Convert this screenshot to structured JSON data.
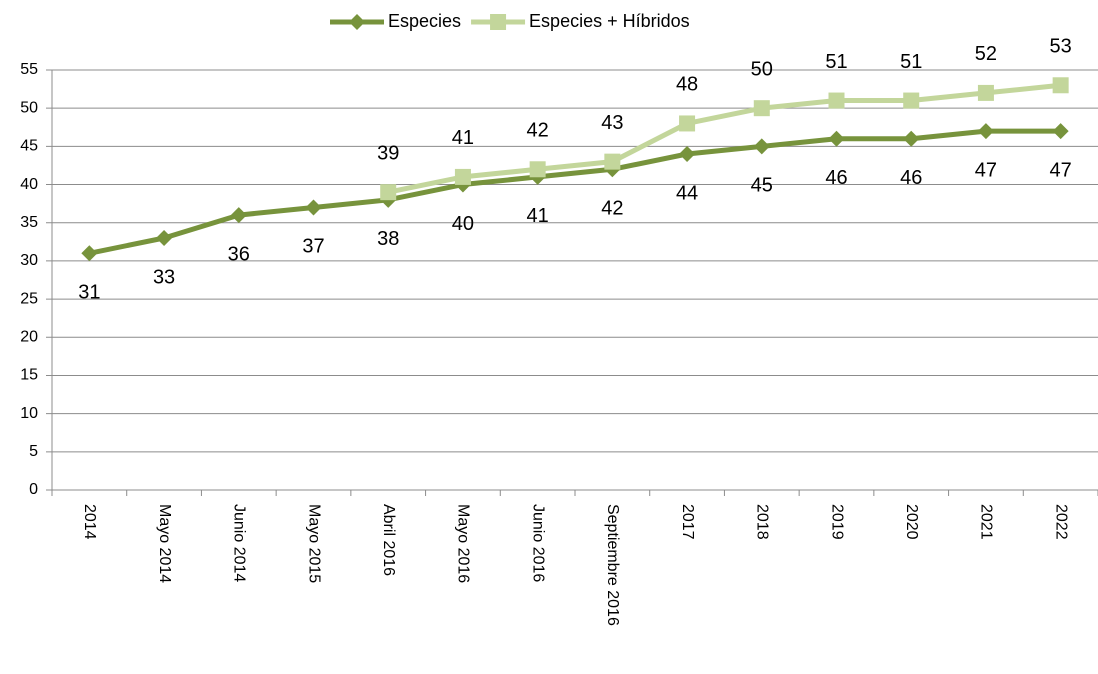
{
  "chart_data": {
    "type": "line",
    "categories": [
      "2014",
      "Mayo 2014",
      "Junio 2014",
      "Mayo 2015",
      "Abril 2016",
      "Mayo 2016",
      "Junio 2016",
      "Septiembre 2016",
      "2017",
      "2018",
      "2019",
      "2020",
      "2021",
      "2022"
    ],
    "series": [
      {
        "name": "Especies",
        "color": "#77933c",
        "marker": "diamond",
        "values": [
          31,
          33,
          36,
          37,
          38,
          40,
          41,
          42,
          44,
          45,
          46,
          46,
          47,
          47
        ]
      },
      {
        "name": "Especies + Híbridos",
        "color": "#c3d69b",
        "marker": "square",
        "values": [
          null,
          null,
          null,
          null,
          39,
          41,
          42,
          43,
          48,
          50,
          51,
          51,
          52,
          53
        ]
      }
    ],
    "ylim": [
      0,
      55
    ],
    "yticks": [
      0,
      5,
      10,
      15,
      20,
      25,
      30,
      35,
      40,
      45,
      50,
      55
    ],
    "grid": true,
    "legend": "top"
  }
}
